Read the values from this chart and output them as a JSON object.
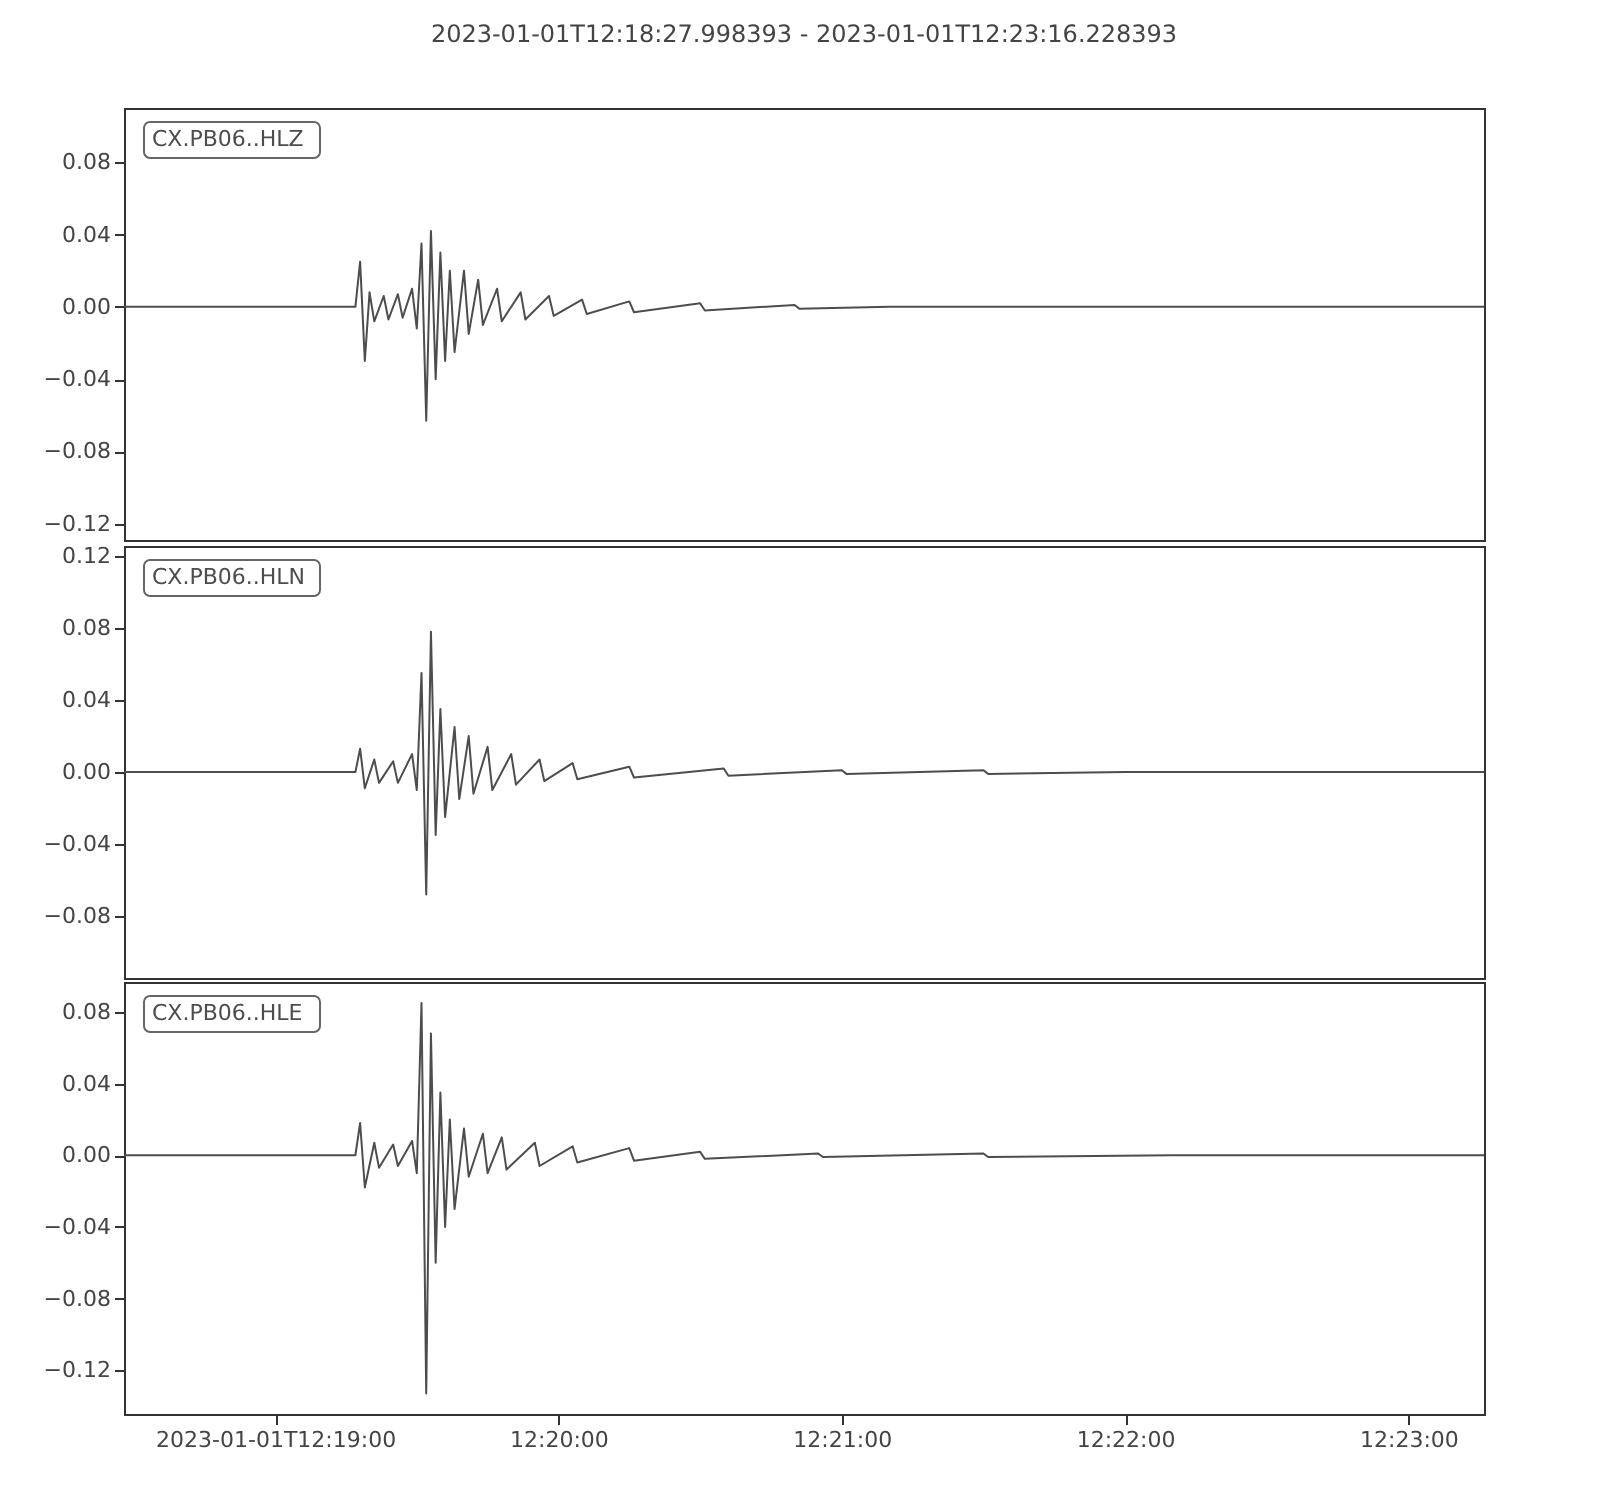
{
  "chart_data": [
    {
      "type": "line",
      "title": "2023-01-01T12:18:27.998393  -  2023-01-01T12:23:16.228393",
      "tick_labels": "y",
      "xlim": [
        "2023-01-01T12:18:28",
        "2023-01-01T12:23:16"
      ],
      "ylim": [
        -0.129,
        0.11
      ],
      "yticks": [
        {
          "value": 0.08,
          "label": "0.08"
        },
        {
          "value": 0.04,
          "label": "0.04"
        },
        {
          "value": 0,
          "label": "0.00"
        },
        {
          "value": -0.04,
          "label": "−0.04"
        },
        {
          "value": -0.08,
          "label": "−0.08"
        },
        {
          "value": -0.12,
          "label": "−0.12"
        }
      ],
      "series": [
        {
          "name": "CX.PB06..HLZ",
          "color": "#4d4d4d",
          "x": [
            "2023-01-01T12:18:28",
            "2023-01-01T12:19:17",
            "2023-01-01T12:19:18",
            "2023-01-01T12:19:19",
            "2023-01-01T12:19:20",
            "2023-01-01T12:19:21",
            "2023-01-01T12:19:23",
            "2023-01-01T12:19:24",
            "2023-01-01T12:19:26",
            "2023-01-01T12:19:27",
            "2023-01-01T12:19:29",
            "2023-01-01T12:19:30",
            "2023-01-01T12:19:31",
            "2023-01-01T12:19:32",
            "2023-01-01T12:19:33",
            "2023-01-01T12:19:34",
            "2023-01-01T12:19:35",
            "2023-01-01T12:19:36",
            "2023-01-01T12:19:37",
            "2023-01-01T12:19:38",
            "2023-01-01T12:19:40",
            "2023-01-01T12:19:41",
            "2023-01-01T12:19:43",
            "2023-01-01T12:19:44",
            "2023-01-01T12:19:47",
            "2023-01-01T12:19:48",
            "2023-01-01T12:19:52",
            "2023-01-01T12:19:53",
            "2023-01-01T12:19:58",
            "2023-01-01T12:19:59",
            "2023-01-01T12:20:05",
            "2023-01-01T12:20:06",
            "2023-01-01T12:20:15",
            "2023-01-01T12:20:16",
            "2023-01-01T12:20:30",
            "2023-01-01T12:20:31",
            "2023-01-01T12:20:50",
            "2023-01-01T12:20:51",
            "2023-01-01T12:21:10",
            "2023-01-01T12:23:16"
          ],
          "values": [
            0,
            0,
            0.025,
            -0.03,
            0.008,
            -0.008,
            0.006,
            -0.007,
            0.007,
            -0.006,
            0.01,
            -0.012,
            0.035,
            -0.063,
            0.042,
            -0.04,
            0.03,
            -0.03,
            0.02,
            -0.025,
            0.02,
            -0.015,
            0.015,
            -0.01,
            0.01,
            -0.008,
            0.008,
            -0.007,
            0.006,
            -0.005,
            0.004,
            -0.004,
            0.003,
            -0.003,
            0.002,
            -0.002,
            0.001,
            -0.001,
            0,
            0
          ]
        }
      ]
    },
    {
      "type": "line",
      "tick_labels": "y",
      "xlim": [
        "2023-01-01T12:18:28",
        "2023-01-01T12:23:16"
      ],
      "ylim": [
        -0.1144,
        0.1256
      ],
      "yticks": [
        {
          "value": 0.12,
          "label": "0.12"
        },
        {
          "value": 0.08,
          "label": "0.08"
        },
        {
          "value": 0.04,
          "label": "0.04"
        },
        {
          "value": 0,
          "label": "0.00"
        },
        {
          "value": -0.04,
          "label": "−0.04"
        },
        {
          "value": -0.08,
          "label": "−0.08"
        }
      ],
      "series": [
        {
          "name": "CX.PB06..HLN",
          "color": "#4d4d4d",
          "x": [
            "2023-01-01T12:18:28",
            "2023-01-01T12:19:17",
            "2023-01-01T12:19:18",
            "2023-01-01T12:19:19",
            "2023-01-01T12:19:21",
            "2023-01-01T12:19:22",
            "2023-01-01T12:19:25",
            "2023-01-01T12:19:26",
            "2023-01-01T12:19:29",
            "2023-01-01T12:19:30",
            "2023-01-01T12:19:31",
            "2023-01-01T12:19:32",
            "2023-01-01T12:19:33",
            "2023-01-01T12:19:34",
            "2023-01-01T12:19:35",
            "2023-01-01T12:19:36",
            "2023-01-01T12:19:38",
            "2023-01-01T12:19:39",
            "2023-01-01T12:19:41",
            "2023-01-01T12:19:42",
            "2023-01-01T12:19:45",
            "2023-01-01T12:19:46",
            "2023-01-01T12:19:50",
            "2023-01-01T12:19:51",
            "2023-01-01T12:19:56",
            "2023-01-01T12:19:57",
            "2023-01-01T12:20:03",
            "2023-01-01T12:20:04",
            "2023-01-01T12:20:15",
            "2023-01-01T12:20:16",
            "2023-01-01T12:20:35",
            "2023-01-01T12:20:36",
            "2023-01-01T12:21:00",
            "2023-01-01T12:21:01",
            "2023-01-01T12:21:30",
            "2023-01-01T12:21:31",
            "2023-01-01T12:22:00",
            "2023-01-01T12:23:16"
          ],
          "values": [
            0,
            0,
            0.013,
            -0.009,
            0.007,
            -0.006,
            0.006,
            -0.006,
            0.01,
            -0.01,
            0.055,
            -0.068,
            0.078,
            -0.035,
            0.035,
            -0.025,
            0.025,
            -0.015,
            0.02,
            -0.012,
            0.014,
            -0.01,
            0.01,
            -0.007,
            0.007,
            -0.005,
            0.005,
            -0.004,
            0.003,
            -0.003,
            0.002,
            -0.002,
            0.001,
            -0.001,
            0.001,
            -0.001,
            0,
            0
          ]
        }
      ]
    },
    {
      "type": "line",
      "xlim": [
        "2023-01-01T12:18:28",
        "2023-01-01T12:23:16"
      ],
      "ylim": [
        -0.1444,
        0.0967
      ],
      "xticks": [
        {
          "value": "2023-01-01T12:19:00",
          "label": "2023-01-01T12:19:00"
        },
        {
          "value": "2023-01-01T12:20:00",
          "label": "12:20:00"
        },
        {
          "value": "2023-01-01T12:21:00",
          "label": "12:21:00"
        },
        {
          "value": "2023-01-01T12:22:00",
          "label": "12:22:00"
        },
        {
          "value": "2023-01-01T12:23:00",
          "label": "12:23:00"
        }
      ],
      "yticks": [
        {
          "value": 0.08,
          "label": "0.08"
        },
        {
          "value": 0.04,
          "label": "0.04"
        },
        {
          "value": 0,
          "label": "0.00"
        },
        {
          "value": -0.04,
          "label": "−0.04"
        },
        {
          "value": -0.08,
          "label": "−0.08"
        },
        {
          "value": -0.12,
          "label": "−0.12"
        }
      ],
      "series": [
        {
          "name": "CX.PB06..HLE",
          "color": "#4d4d4d",
          "x": [
            "2023-01-01T12:18:28",
            "2023-01-01T12:19:17",
            "2023-01-01T12:19:18",
            "2023-01-01T12:19:19",
            "2023-01-01T12:19:21",
            "2023-01-01T12:19:22",
            "2023-01-01T12:19:25",
            "2023-01-01T12:19:26",
            "2023-01-01T12:19:29",
            "2023-01-01T12:19:30",
            "2023-01-01T12:19:31",
            "2023-01-01T12:19:32",
            "2023-01-01T12:19:33",
            "2023-01-01T12:19:34",
            "2023-01-01T12:19:35",
            "2023-01-01T12:19:36",
            "2023-01-01T12:19:37",
            "2023-01-01T12:19:38",
            "2023-01-01T12:19:40",
            "2023-01-01T12:19:41",
            "2023-01-01T12:19:44",
            "2023-01-01T12:19:45",
            "2023-01-01T12:19:48",
            "2023-01-01T12:19:49",
            "2023-01-01T12:19:55",
            "2023-01-01T12:19:56",
            "2023-01-01T12:20:03",
            "2023-01-01T12:20:04",
            "2023-01-01T12:20:15",
            "2023-01-01T12:20:16",
            "2023-01-01T12:20:30",
            "2023-01-01T12:20:31",
            "2023-01-01T12:20:55",
            "2023-01-01T12:20:56",
            "2023-01-01T12:21:30",
            "2023-01-01T12:21:31",
            "2023-01-01T12:22:10",
            "2023-01-01T12:23:16"
          ],
          "values": [
            0,
            0,
            0.018,
            -0.018,
            0.007,
            -0.007,
            0.006,
            -0.006,
            0.008,
            -0.01,
            0.085,
            -0.133,
            0.068,
            -0.06,
            0.035,
            -0.04,
            0.02,
            -0.03,
            0.015,
            -0.012,
            0.012,
            -0.01,
            0.01,
            -0.008,
            0.007,
            -0.006,
            0.005,
            -0.004,
            0.004,
            -0.003,
            0.002,
            -0.002,
            0.001,
            -0.001,
            0.001,
            -0.001,
            0,
            0
          ]
        }
      ]
    }
  ]
}
